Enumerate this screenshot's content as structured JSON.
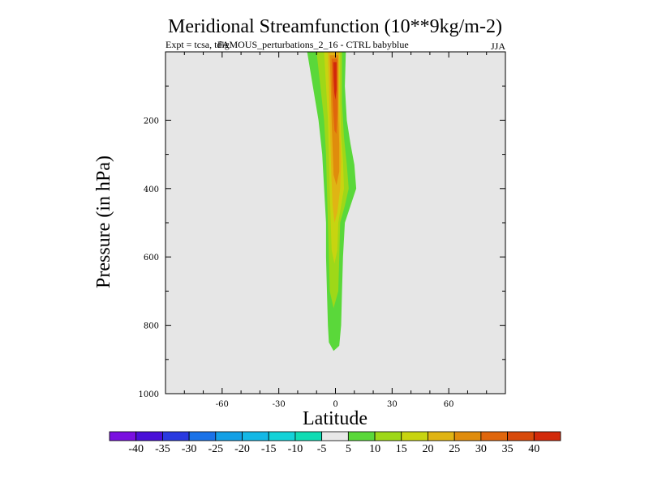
{
  "chart_data": {
    "type": "contour",
    "title": "Meridional Streamfunction (10**9kg/m-2)",
    "subtitle_left": "Expt = tcsa, tdig",
    "subtitle_overlay": "FAMOUS_perturbations_2_16 - CTRL babyblue",
    "season": "JJA",
    "xlabel": "Latitude",
    "ylabel": "Pressure (in hPa)",
    "xlim": [
      -90,
      90
    ],
    "ylim": [
      0,
      1000
    ],
    "y_inverted": true,
    "x_ticks": [
      -60,
      -30,
      0,
      30,
      60
    ],
    "x_tick_labels": [
      "-60",
      "-30",
      "0",
      "30",
      "60"
    ],
    "y_ticks": [
      200,
      400,
      600,
      800,
      1000
    ],
    "y_tick_labels": [
      "200",
      "400",
      "600",
      "800",
      "1000"
    ],
    "colorbar": {
      "levels": [
        -40,
        -35,
        -30,
        -25,
        -20,
        -15,
        -10,
        -5,
        5,
        10,
        15,
        20,
        25,
        30,
        35,
        40
      ],
      "level_labels": [
        "-40",
        "-35",
        "-30",
        "-25",
        "-20",
        "-15",
        "-10",
        "-5",
        "5",
        "10",
        "15",
        "20",
        "25",
        "30",
        "35",
        "40"
      ],
      "colors": [
        "#7a10e0",
        "#4a10d8",
        "#2a3ae0",
        "#1a72e8",
        "#14a0e6",
        "#14b8e6",
        "#14d2d8",
        "#10dcb4",
        "#e8e8e8",
        "#5ad83a",
        "#9ed818",
        "#c8d410",
        "#e0b414",
        "#e08c0c",
        "#e0660c",
        "#d84a0a",
        "#d22a0a"
      ]
    },
    "contour_fill": [
      {
        "level": 10,
        "color": "#5ad83a",
        "outline": [
          [
            -15,
            0
          ],
          [
            -12,
            100
          ],
          [
            -9,
            200
          ],
          [
            -7,
            300
          ],
          [
            -6,
            400
          ],
          [
            -5,
            500
          ],
          [
            -5,
            600
          ],
          [
            -4.5,
            700
          ],
          [
            -4,
            800
          ],
          [
            -3.5,
            850
          ],
          [
            -1,
            875
          ],
          [
            2,
            860
          ],
          [
            3,
            800
          ],
          [
            3.5,
            700
          ],
          [
            4,
            600
          ],
          [
            5,
            500
          ],
          [
            8,
            450
          ],
          [
            11,
            400
          ],
          [
            10,
            330
          ],
          [
            8,
            270
          ],
          [
            6,
            200
          ],
          [
            5,
            100
          ],
          [
            5.5,
            0
          ]
        ]
      },
      {
        "level": 15,
        "color": "#9ed818",
        "outline": [
          [
            -10,
            0
          ],
          [
            -8,
            100
          ],
          [
            -6,
            200
          ],
          [
            -5,
            300
          ],
          [
            -4.5,
            400
          ],
          [
            -4,
            500
          ],
          [
            -3.5,
            600
          ],
          [
            -3,
            700
          ],
          [
            -1,
            750
          ],
          [
            1.5,
            700
          ],
          [
            2,
            600
          ],
          [
            2.5,
            500
          ],
          [
            5,
            450
          ],
          [
            7,
            400
          ],
          [
            6,
            330
          ],
          [
            4.5,
            250
          ],
          [
            3.5,
            150
          ],
          [
            3.5,
            0
          ]
        ]
      },
      {
        "level": 20,
        "color": "#c8d410",
        "outline": [
          [
            -6,
            0
          ],
          [
            -5,
            100
          ],
          [
            -4,
            200
          ],
          [
            -3.5,
            300
          ],
          [
            -3,
            400
          ],
          [
            -2.5,
            500
          ],
          [
            -2,
            580
          ],
          [
            -0.5,
            620
          ],
          [
            1,
            580
          ],
          [
            1.5,
            500
          ],
          [
            3,
            450
          ],
          [
            4.5,
            400
          ],
          [
            4,
            320
          ],
          [
            3,
            240
          ],
          [
            2.5,
            150
          ],
          [
            2.5,
            0
          ]
        ]
      },
      {
        "level": 25,
        "color": "#e0b414",
        "outline": [
          [
            -4,
            0
          ],
          [
            -3.5,
            100
          ],
          [
            -3,
            200
          ],
          [
            -2.5,
            300
          ],
          [
            -2,
            380
          ],
          [
            -1.5,
            450
          ],
          [
            -0.5,
            500
          ],
          [
            1,
            470
          ],
          [
            2.5,
            400
          ],
          [
            3,
            320
          ],
          [
            2.5,
            240
          ],
          [
            2,
            150
          ],
          [
            2,
            0
          ]
        ]
      },
      {
        "level": 30,
        "color": "#e08c0c",
        "outline": [
          [
            -3,
            10
          ],
          [
            -2.5,
            100
          ],
          [
            -2,
            200
          ],
          [
            -1.5,
            280
          ],
          [
            -1,
            360
          ],
          [
            0.5,
            390
          ],
          [
            2,
            350
          ],
          [
            2,
            270
          ],
          [
            1.5,
            200
          ],
          [
            1.5,
            100
          ],
          [
            1.5,
            10
          ]
        ]
      },
      {
        "level": 35,
        "color": "#e0660c",
        "outline": [
          [
            -2,
            20
          ],
          [
            -1.8,
            100
          ],
          [
            -1.2,
            170
          ],
          [
            -0.5,
            230
          ],
          [
            0.5,
            240
          ],
          [
            1,
            180
          ],
          [
            1,
            100
          ],
          [
            1,
            20
          ]
        ]
      },
      {
        "level": 40,
        "color": "#d22a0a",
        "outline": [
          [
            -1.2,
            30
          ],
          [
            -1,
            80
          ],
          [
            -0.6,
            120
          ],
          [
            0,
            140
          ],
          [
            0.6,
            110
          ],
          [
            0.6,
            30
          ]
        ]
      }
    ]
  }
}
